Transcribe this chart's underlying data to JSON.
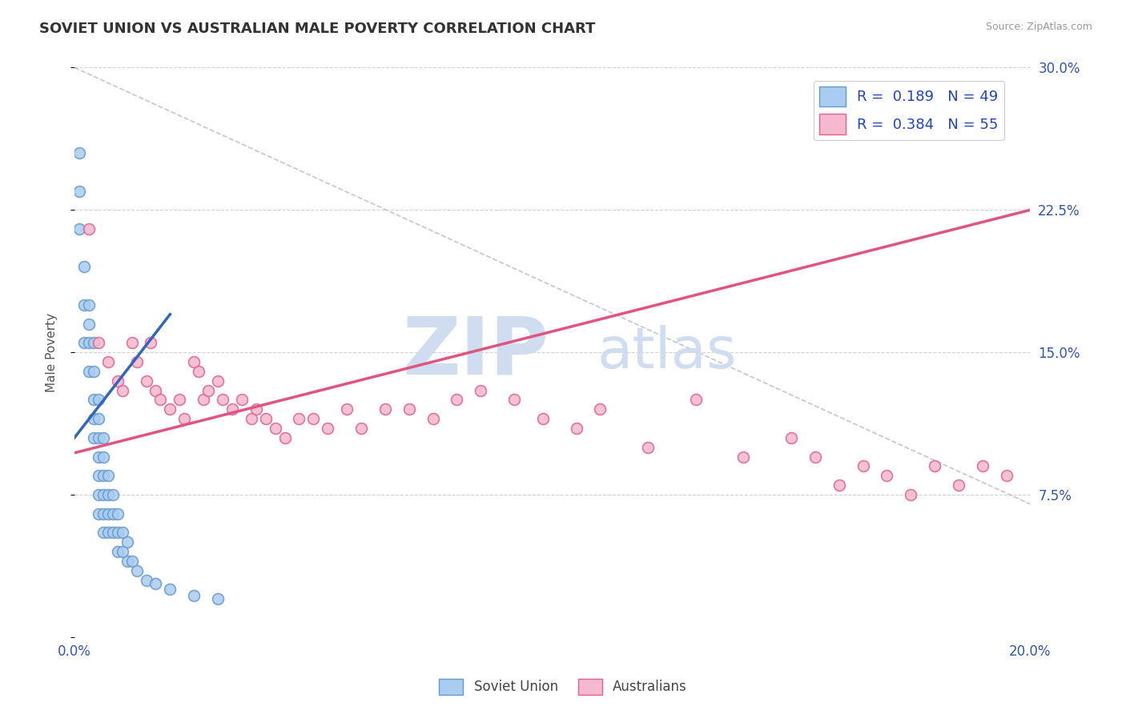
{
  "title": "SOVIET UNION VS AUSTRALIAN MALE POVERTY CORRELATION CHART",
  "source": "Source: ZipAtlas.com",
  "ylabel": "Male Poverty",
  "xlim": [
    0.0,
    0.2
  ],
  "ylim": [
    0.0,
    0.3
  ],
  "soviet_color": "#aaccf0",
  "soviet_edge_color": "#6699cc",
  "australian_color": "#f5b8cc",
  "australian_edge_color": "#e06090",
  "soviet_R": 0.189,
  "soviet_N": 49,
  "australian_R": 0.384,
  "australian_N": 55,
  "legend_label_soviet": "Soviet Union",
  "legend_label_australian": "Australians",
  "trend_blue_color": "#3366bb",
  "trend_pink_color": "#e05580",
  "watermark_zip": "ZIP",
  "watermark_atlas": "atlas",
  "watermark_color": "#d0ddf0",
  "ref_line_color": "#aaaacc",
  "soviet_x": [
    0.001,
    0.001,
    0.001,
    0.002,
    0.002,
    0.002,
    0.003,
    0.003,
    0.003,
    0.003,
    0.004,
    0.004,
    0.004,
    0.004,
    0.004,
    0.005,
    0.005,
    0.005,
    0.005,
    0.005,
    0.005,
    0.005,
    0.006,
    0.006,
    0.006,
    0.006,
    0.006,
    0.006,
    0.007,
    0.007,
    0.007,
    0.007,
    0.008,
    0.008,
    0.008,
    0.009,
    0.009,
    0.009,
    0.01,
    0.01,
    0.011,
    0.011,
    0.012,
    0.013,
    0.015,
    0.017,
    0.02,
    0.025,
    0.03
  ],
  "soviet_y": [
    0.255,
    0.235,
    0.215,
    0.195,
    0.175,
    0.155,
    0.175,
    0.165,
    0.155,
    0.14,
    0.155,
    0.14,
    0.125,
    0.115,
    0.105,
    0.125,
    0.115,
    0.105,
    0.095,
    0.085,
    0.075,
    0.065,
    0.105,
    0.095,
    0.085,
    0.075,
    0.065,
    0.055,
    0.085,
    0.075,
    0.065,
    0.055,
    0.075,
    0.065,
    0.055,
    0.065,
    0.055,
    0.045,
    0.055,
    0.045,
    0.05,
    0.04,
    0.04,
    0.035,
    0.03,
    0.028,
    0.025,
    0.022,
    0.02
  ],
  "aus_x": [
    0.003,
    0.005,
    0.007,
    0.009,
    0.01,
    0.012,
    0.013,
    0.015,
    0.016,
    0.017,
    0.018,
    0.02,
    0.022,
    0.023,
    0.025,
    0.026,
    0.027,
    0.028,
    0.03,
    0.031,
    0.033,
    0.035,
    0.037,
    0.038,
    0.04,
    0.042,
    0.044,
    0.047,
    0.05,
    0.053,
    0.057,
    0.06,
    0.065,
    0.07,
    0.075,
    0.08,
    0.085,
    0.092,
    0.098,
    0.105,
    0.11,
    0.12,
    0.13,
    0.14,
    0.15,
    0.155,
    0.16,
    0.165,
    0.17,
    0.175,
    0.18,
    0.185,
    0.19,
    0.195,
    0.175
  ],
  "aus_y": [
    0.215,
    0.155,
    0.145,
    0.135,
    0.13,
    0.155,
    0.145,
    0.135,
    0.155,
    0.13,
    0.125,
    0.12,
    0.125,
    0.115,
    0.145,
    0.14,
    0.125,
    0.13,
    0.135,
    0.125,
    0.12,
    0.125,
    0.115,
    0.12,
    0.115,
    0.11,
    0.105,
    0.115,
    0.115,
    0.11,
    0.12,
    0.11,
    0.12,
    0.12,
    0.115,
    0.125,
    0.13,
    0.125,
    0.115,
    0.11,
    0.12,
    0.1,
    0.125,
    0.095,
    0.105,
    0.095,
    0.08,
    0.09,
    0.085,
    0.075,
    0.09,
    0.08,
    0.09,
    0.085,
    0.27
  ],
  "blue_line_x": [
    0.0,
    0.02
  ],
  "blue_line_y": [
    0.105,
    0.17
  ],
  "pink_line_x": [
    0.0,
    0.2
  ],
  "pink_line_y": [
    0.097,
    0.225
  ],
  "ref_line_x": [
    0.0,
    0.2
  ],
  "ref_line_y": [
    0.3,
    0.07
  ]
}
